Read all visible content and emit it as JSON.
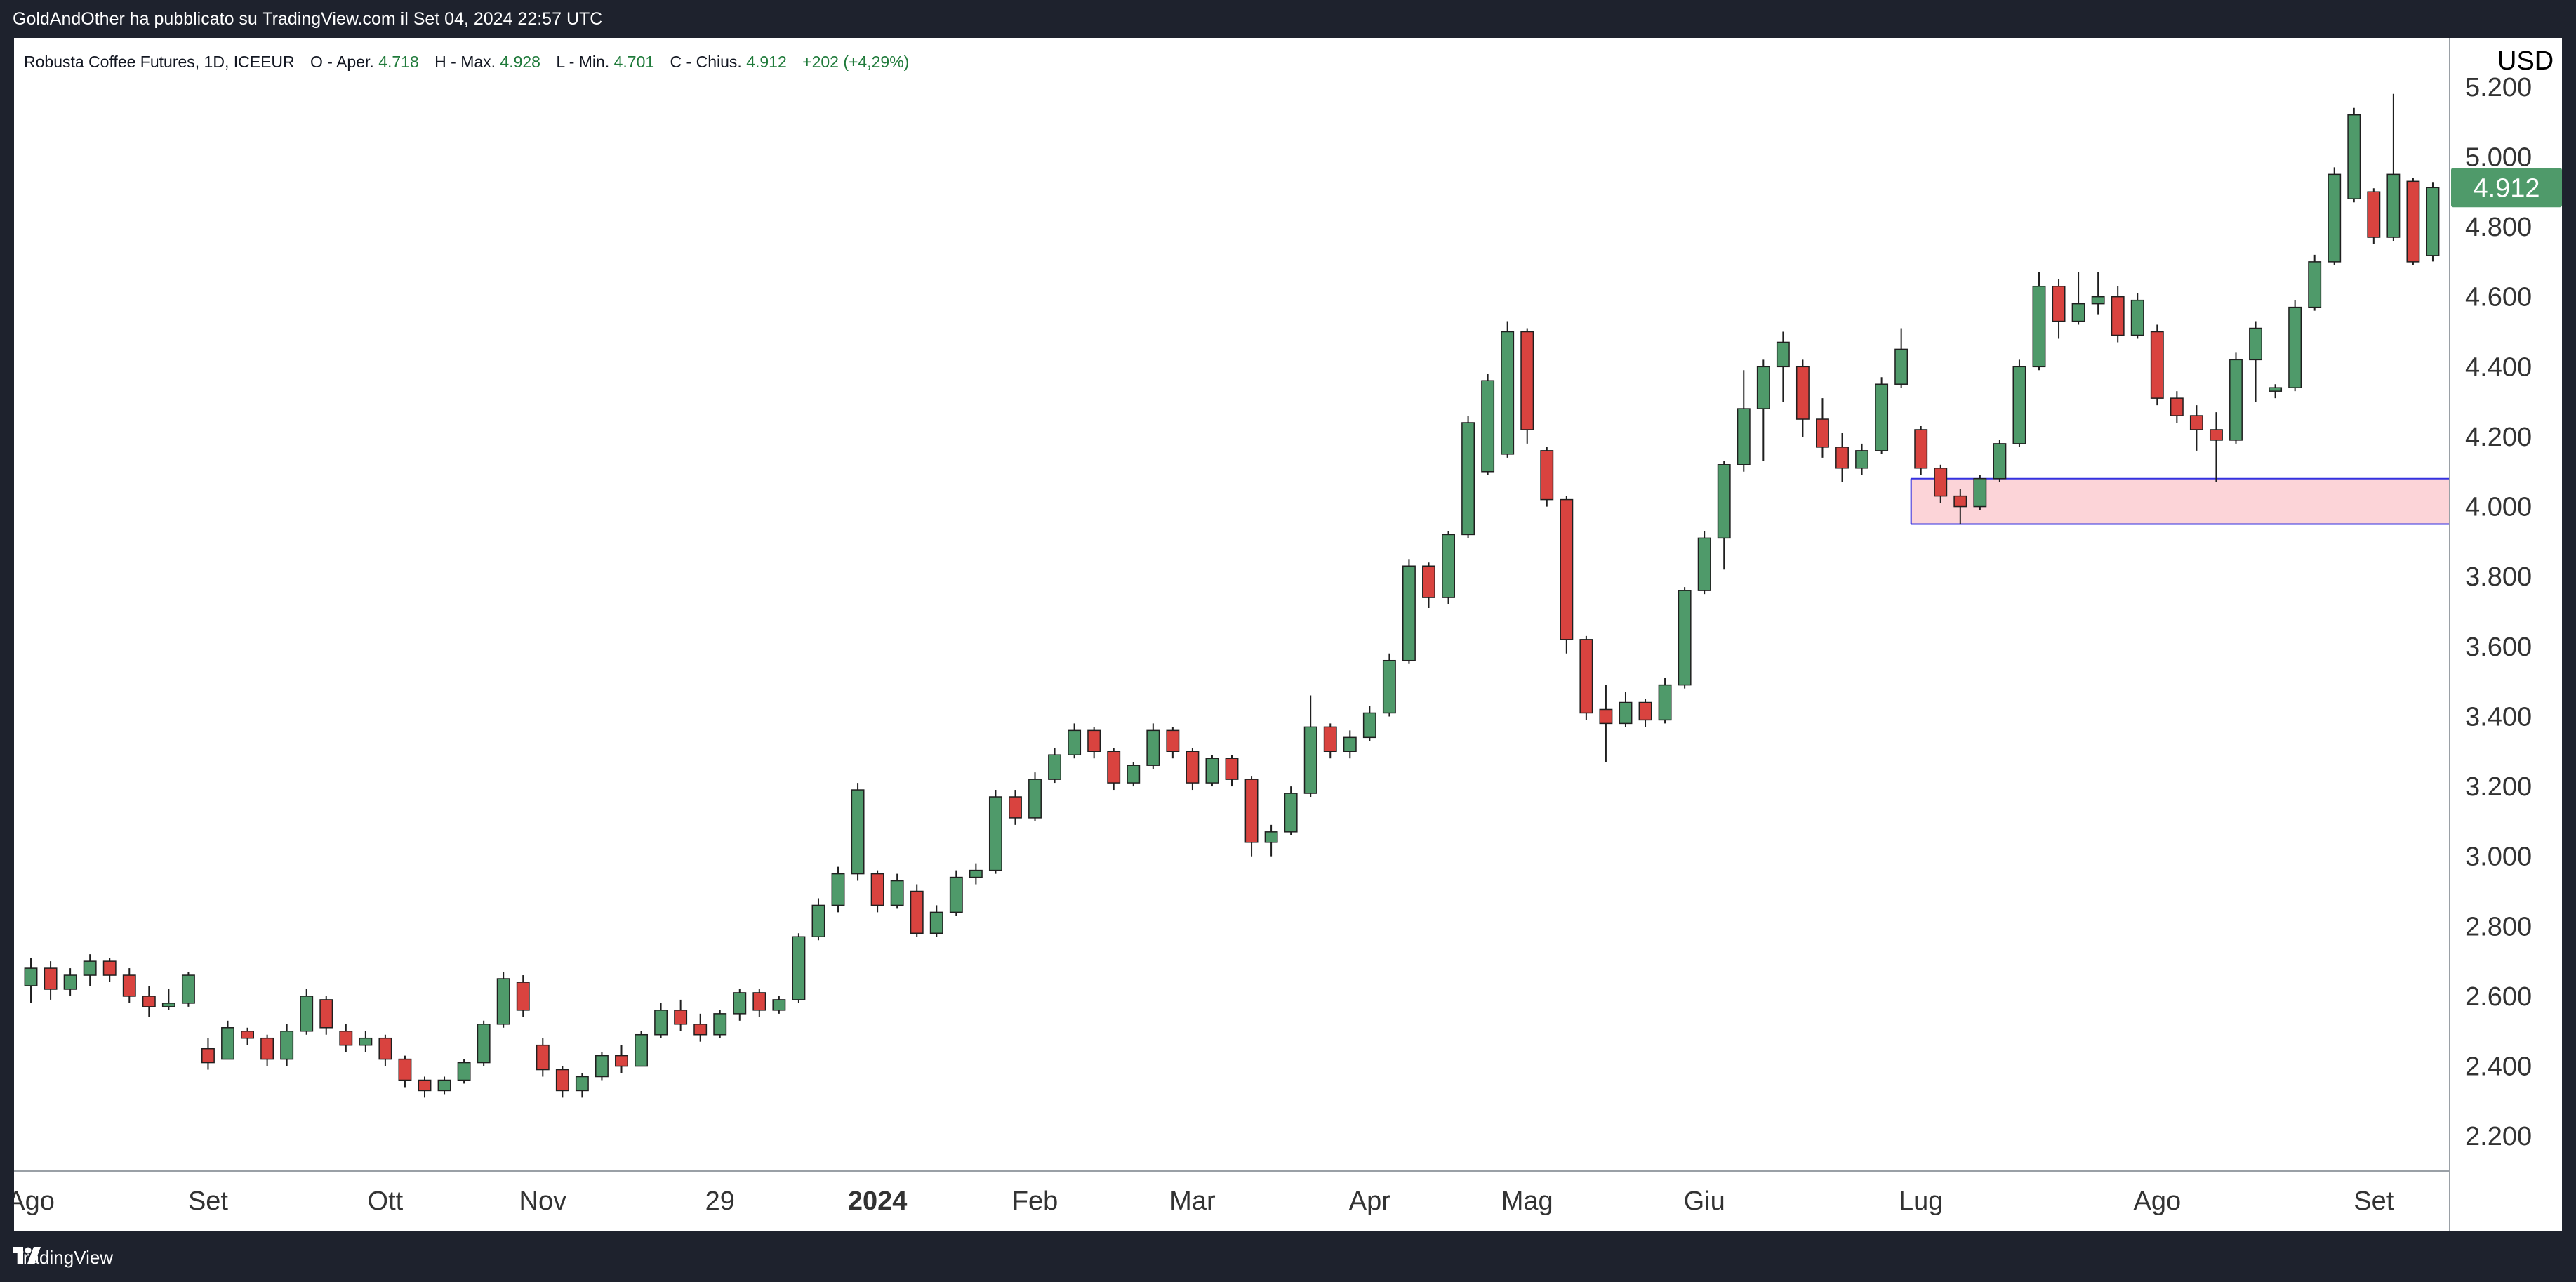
{
  "header": {
    "attribution": "GoldAndOther ha pubblicato su TradingView.com il Set 04, 2024 22:57 UTC"
  },
  "legend": {
    "symbol": "Robusta Coffee Futures, 1D, ICEEUR",
    "open_label": "O - Aper.",
    "open": "4.718",
    "high_label": "H - Max.",
    "high": "4.928",
    "low_label": "L - Min.",
    "low": "4.701",
    "close_label": "C - Chius.",
    "close": "4.912",
    "change": "+202 (+4,29%)"
  },
  "currency": "USD",
  "footer": {
    "brand": "TradingView"
  },
  "colors": {
    "up": "#4f9a6a",
    "down": "#d9433f",
    "wick": "#1f1f1f",
    "zone_fill": "#fcd4d8",
    "zone_border": "#3431e0",
    "price_tag": "#4f9a6a",
    "legend_value": "#1f7a3a"
  },
  "chart_data": {
    "type": "candlestick",
    "title": "Robusta Coffee Futures, 1D, ICEEUR",
    "y_range": [
      2.1,
      5.3
    ],
    "y_ticks": [
      "2.200",
      "2.400",
      "2.600",
      "2.800",
      "3.000",
      "3.200",
      "3.400",
      "3.600",
      "3.800",
      "4.000",
      "4.200",
      "4.400",
      "4.600",
      "4.800",
      "5.000",
      "5.200"
    ],
    "x_labels": [
      {
        "label": "Ago",
        "bold": false
      },
      {
        "label": "Set",
        "bold": false
      },
      {
        "label": "Ott",
        "bold": false
      },
      {
        "label": "Nov",
        "bold": false
      },
      {
        "label": "29",
        "bold": false
      },
      {
        "label": "2024",
        "bold": true
      },
      {
        "label": "Feb",
        "bold": false
      },
      {
        "label": "Mar",
        "bold": false
      },
      {
        "label": "Apr",
        "bold": false
      },
      {
        "label": "Mag",
        "bold": false
      },
      {
        "label": "Giu",
        "bold": false
      },
      {
        "label": "Lug",
        "bold": false
      },
      {
        "label": "Ago",
        "bold": false
      },
      {
        "label": "Set",
        "bold": false
      }
    ],
    "last_price": "4.912",
    "zone": {
      "start_month": "Lug",
      "low": 3.95,
      "high": 4.08
    },
    "series": [
      {
        "month": "Ago",
        "open": 2.63,
        "high": 2.71,
        "low": 2.58,
        "close": 2.68
      },
      {
        "month": "Ago",
        "open": 2.68,
        "high": 2.7,
        "low": 2.59,
        "close": 2.62
      },
      {
        "month": "Ago",
        "open": 2.62,
        "high": 2.68,
        "low": 2.6,
        "close": 2.66
      },
      {
        "month": "Ago",
        "open": 2.66,
        "high": 2.72,
        "low": 2.63,
        "close": 2.7
      },
      {
        "month": "Ago",
        "open": 2.7,
        "high": 2.71,
        "low": 2.64,
        "close": 2.66
      },
      {
        "month": "Ago",
        "open": 2.66,
        "high": 2.68,
        "low": 2.58,
        "close": 2.6
      },
      {
        "month": "Ago",
        "open": 2.6,
        "high": 2.63,
        "low": 2.54,
        "close": 2.57
      },
      {
        "month": "Ago",
        "open": 2.57,
        "high": 2.62,
        "low": 2.56,
        "close": 2.58
      },
      {
        "month": "Ago",
        "open": 2.58,
        "high": 2.67,
        "low": 2.57,
        "close": 2.66
      },
      {
        "month": "Set",
        "open": 2.45,
        "high": 2.48,
        "low": 2.39,
        "close": 2.41
      },
      {
        "month": "Set",
        "open": 2.42,
        "high": 2.53,
        "low": 2.42,
        "close": 2.51
      },
      {
        "month": "Set",
        "open": 2.5,
        "high": 2.51,
        "low": 2.46,
        "close": 2.48
      },
      {
        "month": "Set",
        "open": 2.48,
        "high": 2.49,
        "low": 2.4,
        "close": 2.42
      },
      {
        "month": "Set",
        "open": 2.42,
        "high": 2.52,
        "low": 2.4,
        "close": 2.5
      },
      {
        "month": "Set",
        "open": 2.5,
        "high": 2.62,
        "low": 2.49,
        "close": 2.6
      },
      {
        "month": "Set",
        "open": 2.59,
        "high": 2.6,
        "low": 2.49,
        "close": 2.51
      },
      {
        "month": "Set",
        "open": 2.5,
        "high": 2.52,
        "low": 2.44,
        "close": 2.46
      },
      {
        "month": "Set",
        "open": 2.46,
        "high": 2.5,
        "low": 2.44,
        "close": 2.48
      },
      {
        "month": "Ott",
        "open": 2.48,
        "high": 2.49,
        "low": 2.4,
        "close": 2.42
      },
      {
        "month": "Ott",
        "open": 2.42,
        "high": 2.43,
        "low": 2.34,
        "close": 2.36
      },
      {
        "month": "Ott",
        "open": 2.36,
        "high": 2.37,
        "low": 2.31,
        "close": 2.33
      },
      {
        "month": "Ott",
        "open": 2.33,
        "high": 2.37,
        "low": 2.32,
        "close": 2.36
      },
      {
        "month": "Ott",
        "open": 2.36,
        "high": 2.42,
        "low": 2.35,
        "close": 2.41
      },
      {
        "month": "Ott",
        "open": 2.41,
        "high": 2.53,
        "low": 2.4,
        "close": 2.52
      },
      {
        "month": "Ott",
        "open": 2.52,
        "high": 2.67,
        "low": 2.51,
        "close": 2.65
      },
      {
        "month": "Ott",
        "open": 2.64,
        "high": 2.66,
        "low": 2.54,
        "close": 2.56
      },
      {
        "month": "Nov",
        "open": 2.46,
        "high": 2.48,
        "low": 2.37,
        "close": 2.39
      },
      {
        "month": "Nov",
        "open": 2.39,
        "high": 2.4,
        "low": 2.31,
        "close": 2.33
      },
      {
        "month": "Nov",
        "open": 2.33,
        "high": 2.38,
        "low": 2.31,
        "close": 2.37
      },
      {
        "month": "Nov",
        "open": 2.37,
        "high": 2.44,
        "low": 2.36,
        "close": 2.43
      },
      {
        "month": "Nov",
        "open": 2.43,
        "high": 2.46,
        "low": 2.38,
        "close": 2.4
      },
      {
        "month": "Nov",
        "open": 2.4,
        "high": 2.5,
        "low": 2.4,
        "close": 2.49
      },
      {
        "month": "Nov",
        "open": 2.49,
        "high": 2.58,
        "low": 2.48,
        "close": 2.56
      },
      {
        "month": "Nov",
        "open": 2.56,
        "high": 2.59,
        "low": 2.5,
        "close": 2.52
      },
      {
        "month": "Nov",
        "open": 2.52,
        "high": 2.55,
        "low": 2.47,
        "close": 2.49
      },
      {
        "month": "29",
        "open": 2.49,
        "high": 2.56,
        "low": 2.48,
        "close": 2.55
      },
      {
        "month": "29",
        "open": 2.55,
        "high": 2.62,
        "low": 2.53,
        "close": 2.61
      },
      {
        "month": "29",
        "open": 2.61,
        "high": 2.62,
        "low": 2.54,
        "close": 2.56
      },
      {
        "month": "29",
        "open": 2.56,
        "high": 2.6,
        "low": 2.55,
        "close": 2.59
      },
      {
        "month": "29",
        "open": 2.59,
        "high": 2.78,
        "low": 2.58,
        "close": 2.77
      },
      {
        "month": "29",
        "open": 2.77,
        "high": 2.88,
        "low": 2.76,
        "close": 2.86
      },
      {
        "month": "29",
        "open": 2.86,
        "high": 2.97,
        "low": 2.84,
        "close": 2.95
      },
      {
        "month": "29",
        "open": 2.95,
        "high": 3.21,
        "low": 2.93,
        "close": 3.19
      },
      {
        "month": "2024",
        "open": 2.95,
        "high": 2.96,
        "low": 2.84,
        "close": 2.86
      },
      {
        "month": "2024",
        "open": 2.86,
        "high": 2.95,
        "low": 2.85,
        "close": 2.93
      },
      {
        "month": "2024",
        "open": 2.9,
        "high": 2.92,
        "low": 2.77,
        "close": 2.78
      },
      {
        "month": "2024",
        "open": 2.78,
        "high": 2.86,
        "low": 2.77,
        "close": 2.84
      },
      {
        "month": "2024",
        "open": 2.84,
        "high": 2.96,
        "low": 2.83,
        "close": 2.94
      },
      {
        "month": "2024",
        "open": 2.94,
        "high": 2.98,
        "low": 2.92,
        "close": 2.96
      },
      {
        "month": "2024",
        "open": 2.96,
        "high": 3.19,
        "low": 2.95,
        "close": 3.17
      },
      {
        "month": "2024",
        "open": 3.17,
        "high": 3.19,
        "low": 3.09,
        "close": 3.11
      },
      {
        "month": "Feb",
        "open": 3.11,
        "high": 3.24,
        "low": 3.1,
        "close": 3.22
      },
      {
        "month": "Feb",
        "open": 3.22,
        "high": 3.31,
        "low": 3.21,
        "close": 3.29
      },
      {
        "month": "Feb",
        "open": 3.29,
        "high": 3.38,
        "low": 3.28,
        "close": 3.36
      },
      {
        "month": "Feb",
        "open": 3.36,
        "high": 3.37,
        "low": 3.28,
        "close": 3.3
      },
      {
        "month": "Feb",
        "open": 3.3,
        "high": 3.31,
        "low": 3.19,
        "close": 3.21
      },
      {
        "month": "Feb",
        "open": 3.21,
        "high": 3.27,
        "low": 3.2,
        "close": 3.26
      },
      {
        "month": "Feb",
        "open": 3.26,
        "high": 3.38,
        "low": 3.25,
        "close": 3.36
      },
      {
        "month": "Feb",
        "open": 3.36,
        "high": 3.37,
        "low": 3.28,
        "close": 3.3
      },
      {
        "month": "Mar",
        "open": 3.3,
        "high": 3.31,
        "low": 3.19,
        "close": 3.21
      },
      {
        "month": "Mar",
        "open": 3.21,
        "high": 3.29,
        "low": 3.2,
        "close": 3.28
      },
      {
        "month": "Mar",
        "open": 3.28,
        "high": 3.29,
        "low": 3.2,
        "close": 3.22
      },
      {
        "month": "Mar",
        "open": 3.22,
        "high": 3.23,
        "low": 3.0,
        "close": 3.04
      },
      {
        "month": "Mar",
        "open": 3.04,
        "high": 3.09,
        "low": 3.0,
        "close": 3.07
      },
      {
        "month": "Mar",
        "open": 3.07,
        "high": 3.2,
        "low": 3.06,
        "close": 3.18
      },
      {
        "month": "Mar",
        "open": 3.18,
        "high": 3.46,
        "low": 3.17,
        "close": 3.37
      },
      {
        "month": "Mar",
        "open": 3.37,
        "high": 3.38,
        "low": 3.28,
        "close": 3.3
      },
      {
        "month": "Mar",
        "open": 3.3,
        "high": 3.36,
        "low": 3.28,
        "close": 3.34
      },
      {
        "month": "Apr",
        "open": 3.34,
        "high": 3.43,
        "low": 3.33,
        "close": 3.41
      },
      {
        "month": "Apr",
        "open": 3.41,
        "high": 3.58,
        "low": 3.4,
        "close": 3.56
      },
      {
        "month": "Apr",
        "open": 3.56,
        "high": 3.85,
        "low": 3.55,
        "close": 3.83
      },
      {
        "month": "Apr",
        "open": 3.83,
        "high": 3.84,
        "low": 3.71,
        "close": 3.74
      },
      {
        "month": "Apr",
        "open": 3.74,
        "high": 3.93,
        "low": 3.72,
        "close": 3.92
      },
      {
        "month": "Apr",
        "open": 3.92,
        "high": 4.26,
        "low": 3.91,
        "close": 4.24
      },
      {
        "month": "Apr",
        "open": 4.1,
        "high": 4.38,
        "low": 4.09,
        "close": 4.36
      },
      {
        "month": "Apr",
        "open": 4.15,
        "high": 4.53,
        "low": 4.14,
        "close": 4.5
      },
      {
        "month": "Mag",
        "open": 4.5,
        "high": 4.51,
        "low": 4.18,
        "close": 4.22
      },
      {
        "month": "Mag",
        "open": 4.16,
        "high": 4.17,
        "low": 4.0,
        "close": 4.02
      },
      {
        "month": "Mag",
        "open": 4.02,
        "high": 4.03,
        "low": 3.58,
        "close": 3.62
      },
      {
        "month": "Mag",
        "open": 3.62,
        "high": 3.63,
        "low": 3.39,
        "close": 3.41
      },
      {
        "month": "Mag",
        "open": 3.42,
        "high": 3.49,
        "low": 3.27,
        "close": 3.38
      },
      {
        "month": "Mag",
        "open": 3.38,
        "high": 3.47,
        "low": 3.37,
        "close": 3.44
      },
      {
        "month": "Mag",
        "open": 3.44,
        "high": 3.45,
        "low": 3.37,
        "close": 3.39
      },
      {
        "month": "Mag",
        "open": 3.39,
        "high": 3.51,
        "low": 3.38,
        "close": 3.49
      },
      {
        "month": "Mag",
        "open": 3.49,
        "high": 3.77,
        "low": 3.48,
        "close": 3.76
      },
      {
        "month": "Giu",
        "open": 3.76,
        "high": 3.93,
        "low": 3.75,
        "close": 3.91
      },
      {
        "month": "Giu",
        "open": 3.91,
        "high": 4.13,
        "low": 3.82,
        "close": 4.12
      },
      {
        "month": "Giu",
        "open": 4.12,
        "high": 4.39,
        "low": 4.1,
        "close": 4.28
      },
      {
        "month": "Giu",
        "open": 4.28,
        "high": 4.42,
        "low": 4.13,
        "close": 4.4
      },
      {
        "month": "Giu",
        "open": 4.4,
        "high": 4.5,
        "low": 4.3,
        "close": 4.47
      },
      {
        "month": "Giu",
        "open": 4.4,
        "high": 4.42,
        "low": 4.2,
        "close": 4.25
      },
      {
        "month": "Giu",
        "open": 4.25,
        "high": 4.31,
        "low": 4.14,
        "close": 4.17
      },
      {
        "month": "Giu",
        "open": 4.17,
        "high": 4.21,
        "low": 4.07,
        "close": 4.11
      },
      {
        "month": "Giu",
        "open": 4.11,
        "high": 4.18,
        "low": 4.09,
        "close": 4.16
      },
      {
        "month": "Giu",
        "open": 4.16,
        "high": 4.37,
        "low": 4.15,
        "close": 4.35
      },
      {
        "month": "Giu",
        "open": 4.35,
        "high": 4.51,
        "low": 4.34,
        "close": 4.45
      },
      {
        "month": "Lug",
        "open": 4.22,
        "high": 4.23,
        "low": 4.09,
        "close": 4.11
      },
      {
        "month": "Lug",
        "open": 4.11,
        "high": 4.12,
        "low": 4.01,
        "close": 4.03
      },
      {
        "month": "Lug",
        "open": 4.03,
        "high": 4.05,
        "low": 3.95,
        "close": 4.0
      },
      {
        "month": "Lug",
        "open": 4.0,
        "high": 4.09,
        "low": 3.99,
        "close": 4.08
      },
      {
        "month": "Lug",
        "open": 4.08,
        "high": 4.19,
        "low": 4.07,
        "close": 4.18
      },
      {
        "month": "Lug",
        "open": 4.18,
        "high": 4.42,
        "low": 4.17,
        "close": 4.4
      },
      {
        "month": "Lug",
        "open": 4.4,
        "high": 4.67,
        "low": 4.39,
        "close": 4.63
      },
      {
        "month": "Lug",
        "open": 4.63,
        "high": 4.65,
        "low": 4.48,
        "close": 4.53
      },
      {
        "month": "Lug",
        "open": 4.53,
        "high": 4.67,
        "low": 4.52,
        "close": 4.58
      },
      {
        "month": "Lug",
        "open": 4.58,
        "high": 4.67,
        "low": 4.55,
        "close": 4.6
      },
      {
        "month": "Lug",
        "open": 4.6,
        "high": 4.63,
        "low": 4.47,
        "close": 4.49
      },
      {
        "month": "Lug",
        "open": 4.49,
        "high": 4.61,
        "low": 4.48,
        "close": 4.59
      },
      {
        "month": "Ago",
        "open": 4.5,
        "high": 4.52,
        "low": 4.29,
        "close": 4.31
      },
      {
        "month": "Ago",
        "open": 4.31,
        "high": 4.33,
        "low": 4.24,
        "close": 4.26
      },
      {
        "month": "Ago",
        "open": 4.26,
        "high": 4.29,
        "low": 4.16,
        "close": 4.22
      },
      {
        "month": "Ago",
        "open": 4.22,
        "high": 4.27,
        "low": 4.07,
        "close": 4.19
      },
      {
        "month": "Ago",
        "open": 4.19,
        "high": 4.44,
        "low": 4.18,
        "close": 4.42
      },
      {
        "month": "Ago",
        "open": 4.42,
        "high": 4.53,
        "low": 4.3,
        "close": 4.51
      },
      {
        "month": "Ago",
        "open": 4.33,
        "high": 4.35,
        "low": 4.31,
        "close": 4.34
      },
      {
        "month": "Ago",
        "open": 4.34,
        "high": 4.59,
        "low": 4.33,
        "close": 4.57
      },
      {
        "month": "Ago",
        "open": 4.57,
        "high": 4.72,
        "low": 4.56,
        "close": 4.7
      },
      {
        "month": "Ago",
        "open": 4.7,
        "high": 4.97,
        "low": 4.69,
        "close": 4.95
      },
      {
        "month": "Ago",
        "open": 4.88,
        "high": 5.14,
        "low": 4.87,
        "close": 5.12
      },
      {
        "month": "Set",
        "open": 4.9,
        "high": 4.91,
        "low": 4.75,
        "close": 4.77
      },
      {
        "month": "Set",
        "open": 4.77,
        "high": 5.18,
        "low": 4.76,
        "close": 4.95
      },
      {
        "month": "Set",
        "open": 4.93,
        "high": 4.94,
        "low": 4.69,
        "close": 4.7
      },
      {
        "month": "Set",
        "open": 4.718,
        "high": 4.928,
        "low": 4.701,
        "close": 4.912
      }
    ]
  }
}
